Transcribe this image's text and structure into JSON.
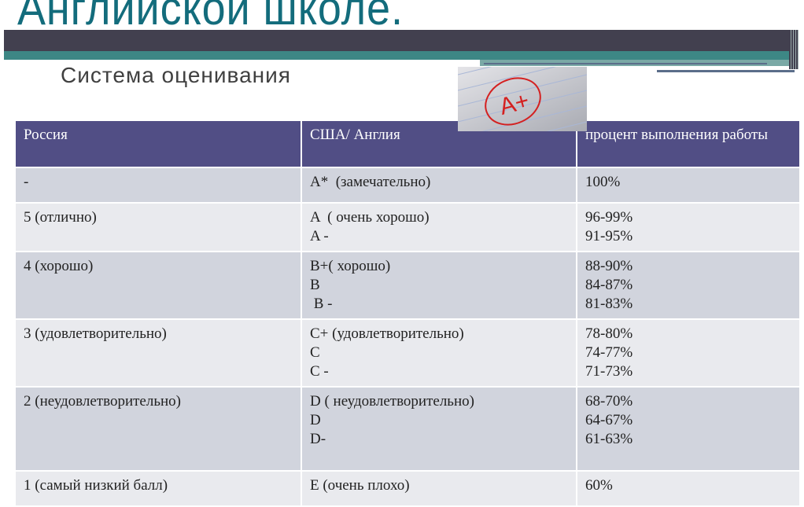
{
  "slide": {
    "title": "Английской школе.",
    "subtitle": "Система оценивания",
    "image_label": "A+",
    "colors": {
      "header": "#514e85",
      "title": "#136c7c",
      "row_dark": "#d1d4dd",
      "row_light": "#e9eaee"
    }
  },
  "table": {
    "headers": [
      "Россия",
      "США/ Англия",
      "процент выполнения работы"
    ],
    "rows": [
      {
        "russia": "-",
        "usa": [
          "A*  (замечательно)"
        ],
        "percent": [
          "100%"
        ]
      },
      {
        "russia": "5 (отлично)",
        "usa": [
          "A  ( очень хорошо)",
          "A -"
        ],
        "percent": [
          "96-99%",
          "91-95%"
        ]
      },
      {
        "russia": "4 (хорошо)",
        "usa": [
          "B+( хорошо)",
          "B",
          " B -"
        ],
        "percent": [
          "88-90%",
          "84-87%",
          "81-83%"
        ]
      },
      {
        "russia": "3 (удовлетворительно)",
        "usa": [
          "C+ (удовлетворительно)",
          "C",
          "C -"
        ],
        "percent": [
          "78-80%",
          "74-77%",
          "71-73%"
        ]
      },
      {
        "russia": "2 (неудовлетворительно)",
        "usa": [
          "D ( неудовлетворительно)",
          "D",
          "D-"
        ],
        "percent": [
          "68-70%",
          "64-67%",
          "61-63%"
        ]
      },
      {
        "russia": "1 (самый низкий балл)",
        "usa": [
          "E (очень плохо)"
        ],
        "percent": [
          "60%"
        ]
      }
    ]
  }
}
